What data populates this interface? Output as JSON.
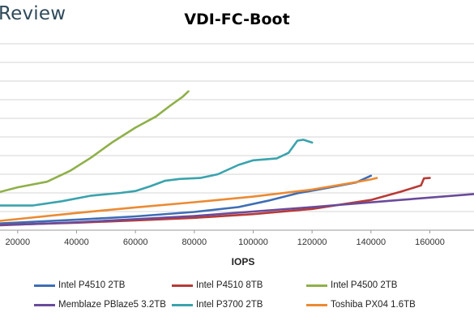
{
  "header": {
    "brand": "Review"
  },
  "chart_data": {
    "type": "line",
    "title": "VDI-FC-Boot",
    "xlabel": "IOPS",
    "ylabel": "",
    "xlim": [
      14000,
      175000
    ],
    "x_ticks": [
      20000,
      40000,
      60000,
      80000,
      100000,
      120000,
      140000,
      160000
    ],
    "x_tick_labels": [
      "20000",
      "40000",
      "60000",
      "80000",
      "100000",
      "120000",
      "140000",
      "160000"
    ],
    "grid": true,
    "legend_position": "bottom",
    "series": [
      {
        "name": "Intel P4510 2TB",
        "color": "#3e6db5",
        "points": [
          [
            14000,
            0.36
          ],
          [
            40000,
            0.56
          ],
          [
            60000,
            0.74
          ],
          [
            80000,
            0.98
          ],
          [
            95000,
            1.24
          ],
          [
            105000,
            1.58
          ],
          [
            115000,
            1.98
          ],
          [
            125000,
            2.26
          ],
          [
            135000,
            2.56
          ],
          [
            140000,
            2.92
          ]
        ]
      },
      {
        "name": "Intel P4510 8TB",
        "color": "#b83a36",
        "points": [
          [
            14000,
            0.28
          ],
          [
            40000,
            0.4
          ],
          [
            60000,
            0.52
          ],
          [
            80000,
            0.66
          ],
          [
            100000,
            0.86
          ],
          [
            120000,
            1.14
          ],
          [
            140000,
            1.62
          ],
          [
            150000,
            2.06
          ],
          [
            157000,
            2.4
          ],
          [
            158000,
            2.78
          ],
          [
            160000,
            2.8
          ]
        ]
      },
      {
        "name": "Intel P4500 2TB",
        "color": "#8fb04a",
        "points": [
          [
            14000,
            2.05
          ],
          [
            20000,
            2.3
          ],
          [
            30000,
            2.6
          ],
          [
            38000,
            3.2
          ],
          [
            45000,
            3.9
          ],
          [
            52000,
            4.7
          ],
          [
            60000,
            5.5
          ],
          [
            67000,
            6.1
          ],
          [
            72000,
            6.7
          ],
          [
            76000,
            7.15
          ],
          [
            78000,
            7.45
          ]
        ]
      },
      {
        "name": "Memblaze PBlaze5 3.2TB",
        "color": "#6a4b9a",
        "points": [
          [
            14000,
            0.26
          ],
          [
            40000,
            0.42
          ],
          [
            80000,
            0.76
          ],
          [
            120000,
            1.24
          ],
          [
            150000,
            1.62
          ],
          [
            175000,
            1.94
          ]
        ]
      },
      {
        "name": "Intel P3700 2TB",
        "color": "#3aa3ad",
        "points": [
          [
            14000,
            1.32
          ],
          [
            25000,
            1.32
          ],
          [
            35000,
            1.55
          ],
          [
            45000,
            1.85
          ],
          [
            55000,
            2.0
          ],
          [
            60000,
            2.1
          ],
          [
            65000,
            2.35
          ],
          [
            70000,
            2.65
          ],
          [
            75000,
            2.75
          ],
          [
            82000,
            2.8
          ],
          [
            88000,
            3.0
          ],
          [
            95000,
            3.5
          ],
          [
            100000,
            3.75
          ],
          [
            108000,
            3.85
          ],
          [
            112000,
            4.15
          ],
          [
            115000,
            4.8
          ],
          [
            117000,
            4.85
          ],
          [
            120000,
            4.7
          ]
        ]
      },
      {
        "name": "Toshiba PX04 1.6TB",
        "color": "#ec8a32",
        "points": [
          [
            14000,
            0.5
          ],
          [
            40000,
            0.92
          ],
          [
            60000,
            1.22
          ],
          [
            80000,
            1.5
          ],
          [
            100000,
            1.8
          ],
          [
            120000,
            2.18
          ],
          [
            135000,
            2.58
          ],
          [
            140000,
            2.72
          ],
          [
            142000,
            2.8
          ]
        ]
      }
    ]
  }
}
